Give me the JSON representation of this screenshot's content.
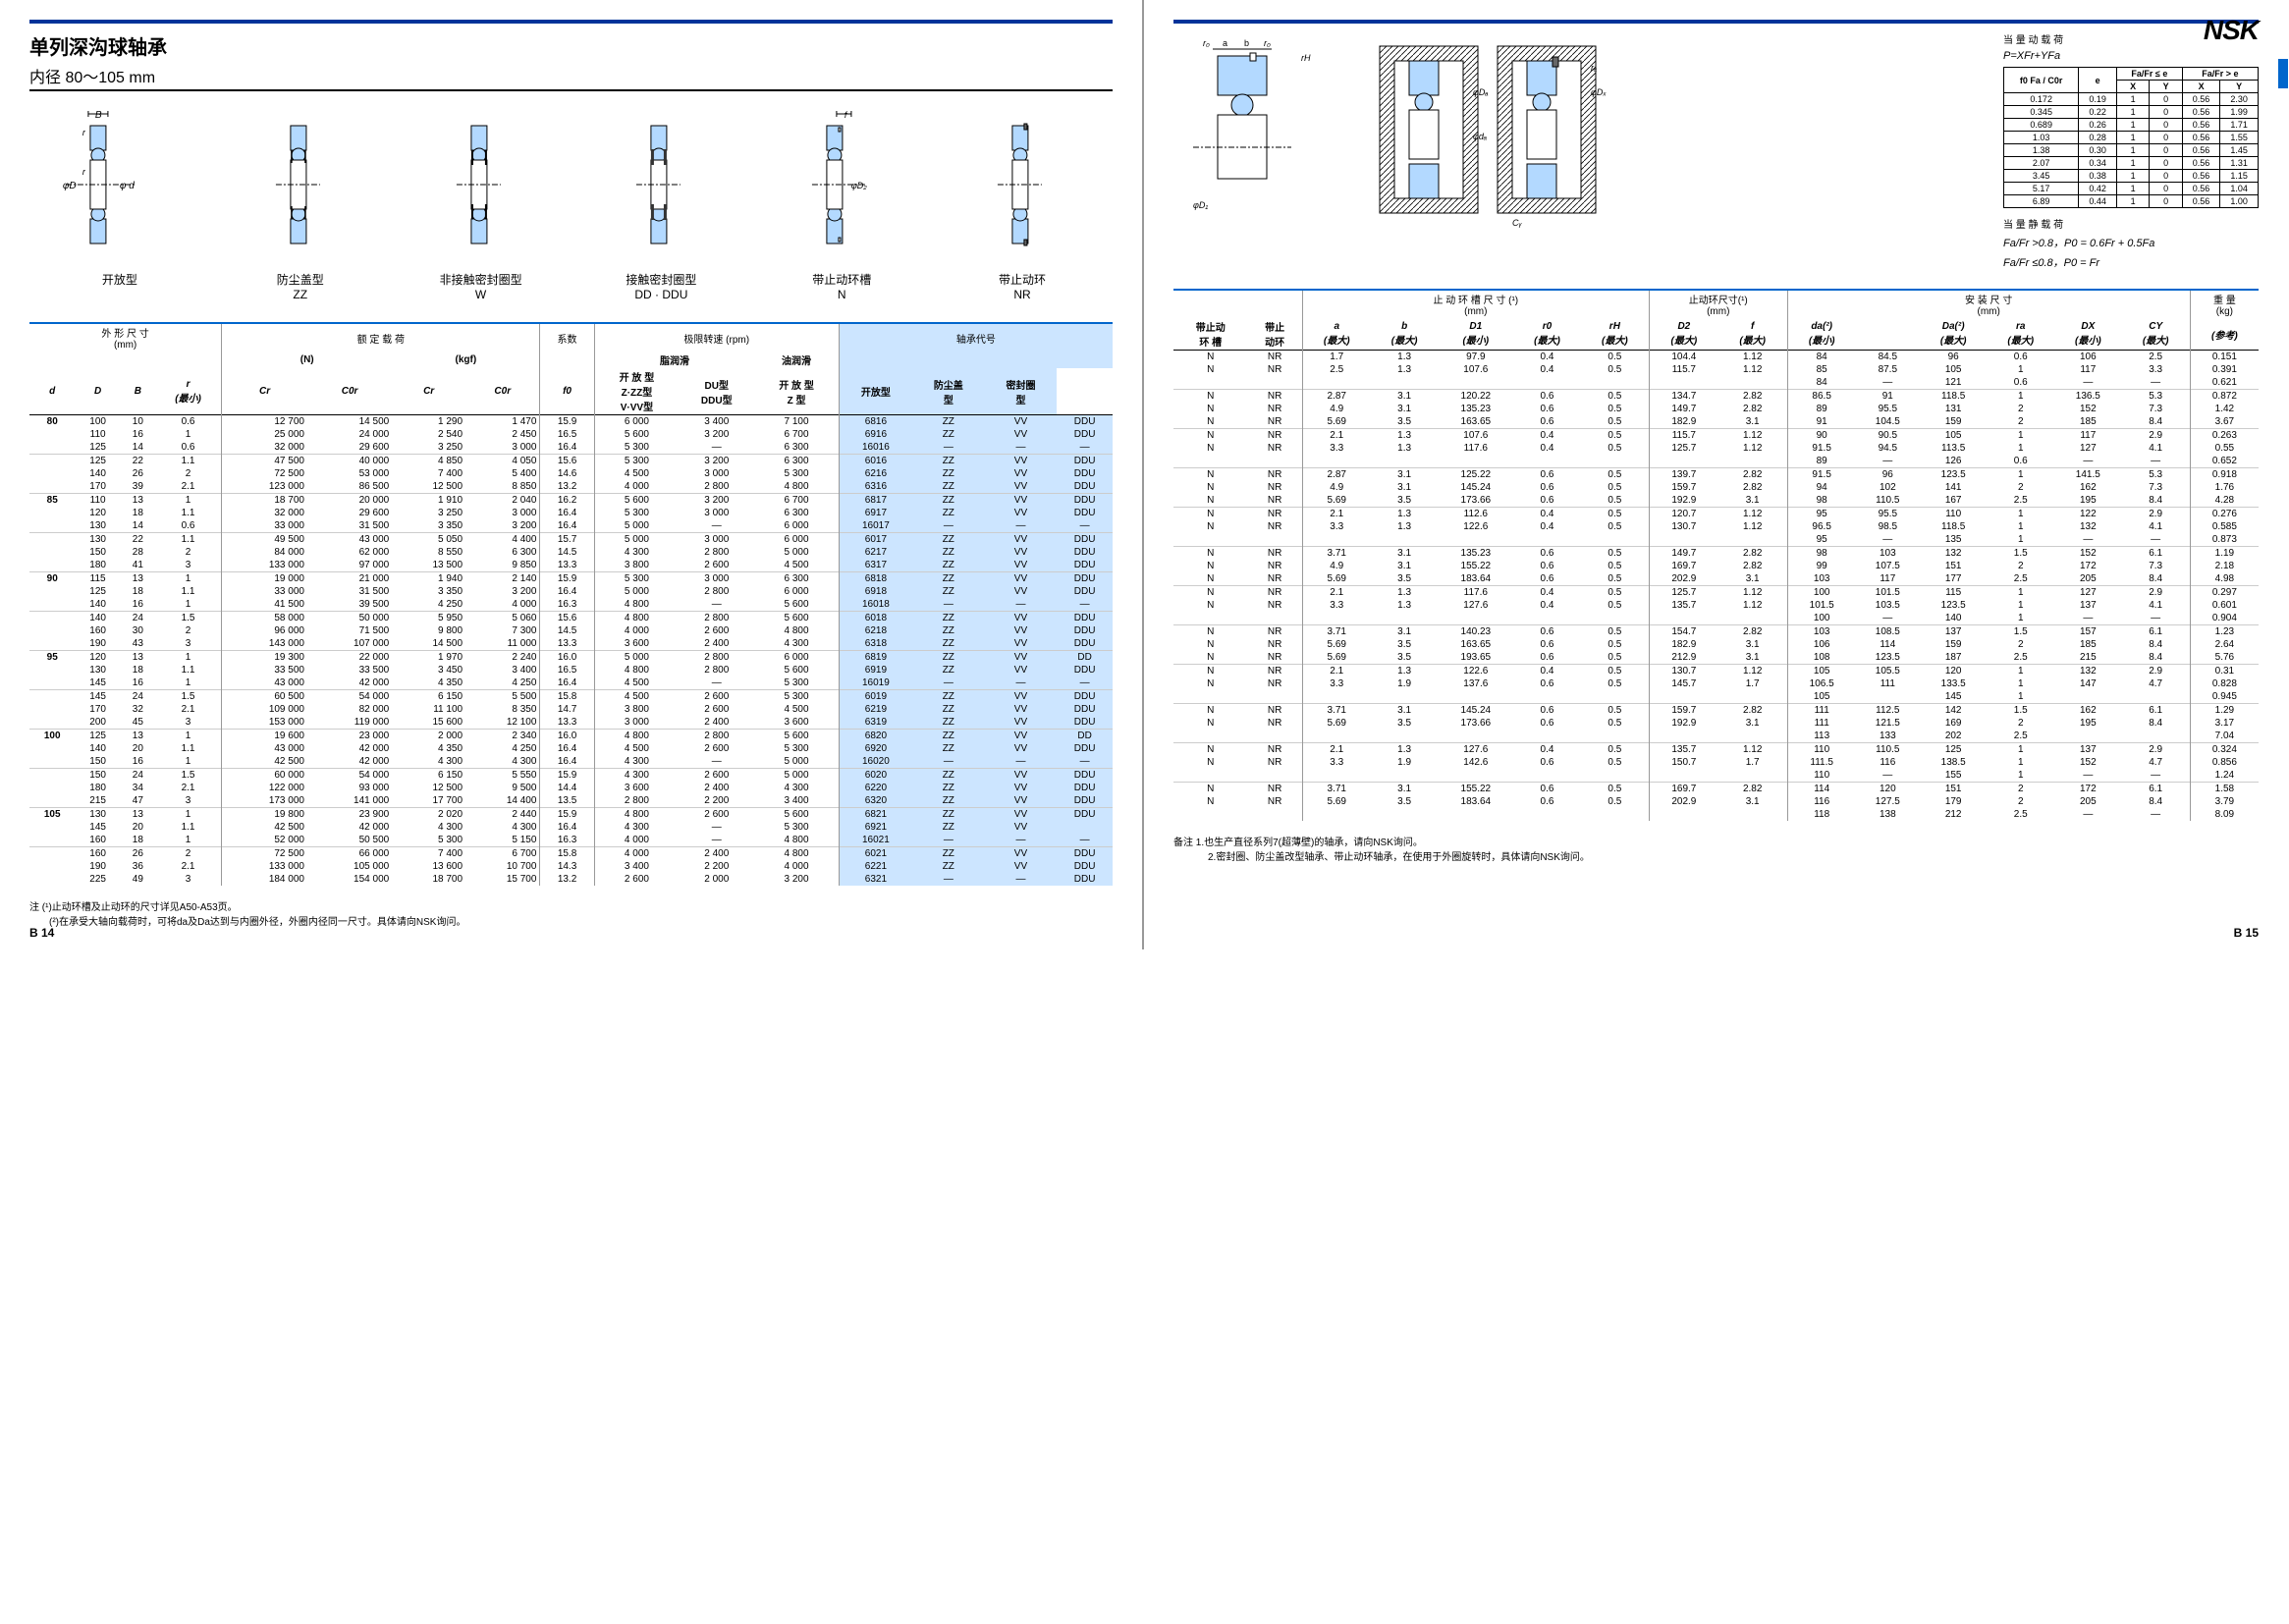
{
  "logo": "NSK",
  "titleMain": "单列深沟球轴承",
  "subtitle": "内径  80～105 mm",
  "diagramLabels": [
    "开放型",
    "防尘盖型\nZZ",
    "非接触密封圈型\nW",
    "接触密封圈型\nDD · DDU",
    "带止动环槽\nN",
    "带止动环\nNR"
  ],
  "leftHeaders": {
    "group1": "外 形 尺 寸\n(mm)",
    "group2": "额 定 载 荷",
    "group2a": "(N)",
    "group2b": "(kgf)",
    "group3": "系数",
    "group4": "极限转速    (rpm)",
    "group4a": "脂润滑",
    "group4b": "油润滑",
    "group5": "轴承代号",
    "cols": [
      "d",
      "D",
      "B",
      "r\n(最小)",
      "Cr",
      "C0r",
      "Cr",
      "C0r",
      "f0",
      "开 放 型\nZ·ZZ型\nV·VV型",
      "DU型\nDDU型",
      "开 放 型\nZ  型",
      "开放型",
      "防尘盖\n型",
      "密封圈\n型"
    ]
  },
  "leftRows": [
    [
      "80",
      "100",
      "10",
      "0.6",
      "12 700",
      "14 500",
      "1 290",
      "1 470",
      "15.9",
      "6 000",
      "3 400",
      "7 100",
      "6816",
      "ZZ",
      "VV",
      "DDU"
    ],
    [
      "",
      "110",
      "16",
      "1",
      "25 000",
      "24 000",
      "2 540",
      "2 450",
      "16.5",
      "5 600",
      "3 200",
      "6 700",
      "6916",
      "ZZ",
      "VV",
      "DDU"
    ],
    [
      "",
      "125",
      "14",
      "0.6",
      "32 000",
      "29 600",
      "3 250",
      "3 000",
      "16.4",
      "5 300",
      "—",
      "6 300",
      "16016",
      "—",
      "—",
      "—"
    ],
    [
      "",
      "125",
      "22",
      "1.1",
      "47 500",
      "40 000",
      "4 850",
      "4 050",
      "15.6",
      "5 300",
      "3 200",
      "6 300",
      "6016",
      "ZZ",
      "VV",
      "DDU"
    ],
    [
      "",
      "140",
      "26",
      "2",
      "72 500",
      "53 000",
      "7 400",
      "5 400",
      "14.6",
      "4 500",
      "3 000",
      "5 300",
      "6216",
      "ZZ",
      "VV",
      "DDU"
    ],
    [
      "",
      "170",
      "39",
      "2.1",
      "123 000",
      "86 500",
      "12 500",
      "8 850",
      "13.2",
      "4 000",
      "2 800",
      "4 800",
      "6316",
      "ZZ",
      "VV",
      "DDU"
    ],
    [
      "85",
      "110",
      "13",
      "1",
      "18 700",
      "20 000",
      "1 910",
      "2 040",
      "16.2",
      "5 600",
      "3 200",
      "6 700",
      "6817",
      "ZZ",
      "VV",
      "DDU"
    ],
    [
      "",
      "120",
      "18",
      "1.1",
      "32 000",
      "29 600",
      "3 250",
      "3 000",
      "16.4",
      "5 300",
      "3 000",
      "6 300",
      "6917",
      "ZZ",
      "VV",
      "DDU"
    ],
    [
      "",
      "130",
      "14",
      "0.6",
      "33 000",
      "31 500",
      "3 350",
      "3 200",
      "16.4",
      "5 000",
      "—",
      "6 000",
      "16017",
      "—",
      "—",
      "—"
    ],
    [
      "",
      "130",
      "22",
      "1.1",
      "49 500",
      "43 000",
      "5 050",
      "4 400",
      "15.7",
      "5 000",
      "3 000",
      "6 000",
      "6017",
      "ZZ",
      "VV",
      "DDU"
    ],
    [
      "",
      "150",
      "28",
      "2",
      "84 000",
      "62 000",
      "8 550",
      "6 300",
      "14.5",
      "4 300",
      "2 800",
      "5 000",
      "6217",
      "ZZ",
      "VV",
      "DDU"
    ],
    [
      "",
      "180",
      "41",
      "3",
      "133 000",
      "97 000",
      "13 500",
      "9 850",
      "13.3",
      "3 800",
      "2 600",
      "4 500",
      "6317",
      "ZZ",
      "VV",
      "DDU"
    ],
    [
      "90",
      "115",
      "13",
      "1",
      "19 000",
      "21 000",
      "1 940",
      "2 140",
      "15.9",
      "5 300",
      "3 000",
      "6 300",
      "6818",
      "ZZ",
      "VV",
      "DDU"
    ],
    [
      "",
      "125",
      "18",
      "1.1",
      "33 000",
      "31 500",
      "3 350",
      "3 200",
      "16.4",
      "5 000",
      "2 800",
      "6 000",
      "6918",
      "ZZ",
      "VV",
      "DDU"
    ],
    [
      "",
      "140",
      "16",
      "1",
      "41 500",
      "39 500",
      "4 250",
      "4 000",
      "16.3",
      "4 800",
      "—",
      "5 600",
      "16018",
      "—",
      "—",
      "—"
    ],
    [
      "",
      "140",
      "24",
      "1.5",
      "58 000",
      "50 000",
      "5 950",
      "5 060",
      "15.6",
      "4 800",
      "2 800",
      "5 600",
      "6018",
      "ZZ",
      "VV",
      "DDU"
    ],
    [
      "",
      "160",
      "30",
      "2",
      "96 000",
      "71 500",
      "9 800",
      "7 300",
      "14.5",
      "4 000",
      "2 600",
      "4 800",
      "6218",
      "ZZ",
      "VV",
      "DDU"
    ],
    [
      "",
      "190",
      "43",
      "3",
      "143 000",
      "107 000",
      "14 500",
      "11 000",
      "13.3",
      "3 600",
      "2 400",
      "4 300",
      "6318",
      "ZZ",
      "VV",
      "DDU"
    ],
    [
      "95",
      "120",
      "13",
      "1",
      "19 300",
      "22 000",
      "1 970",
      "2 240",
      "16.0",
      "5 000",
      "2 800",
      "6 000",
      "6819",
      "ZZ",
      "VV",
      "DD"
    ],
    [
      "",
      "130",
      "18",
      "1.1",
      "33 500",
      "33 500",
      "3 450",
      "3 400",
      "16.5",
      "4 800",
      "2 800",
      "5 600",
      "6919",
      "ZZ",
      "VV",
      "DDU"
    ],
    [
      "",
      "145",
      "16",
      "1",
      "43 000",
      "42 000",
      "4 350",
      "4 250",
      "16.4",
      "4 500",
      "—",
      "5 300",
      "16019",
      "—",
      "—",
      "—"
    ],
    [
      "",
      "145",
      "24",
      "1.5",
      "60 500",
      "54 000",
      "6 150",
      "5 500",
      "15.8",
      "4 500",
      "2 600",
      "5 300",
      "6019",
      "ZZ",
      "VV",
      "DDU"
    ],
    [
      "",
      "170",
      "32",
      "2.1",
      "109 000",
      "82 000",
      "11 100",
      "8 350",
      "14.7",
      "3 800",
      "2 600",
      "4 500",
      "6219",
      "ZZ",
      "VV",
      "DDU"
    ],
    [
      "",
      "200",
      "45",
      "3",
      "153 000",
      "119 000",
      "15 600",
      "12 100",
      "13.3",
      "3 000",
      "2 400",
      "3 600",
      "6319",
      "ZZ",
      "VV",
      "DDU"
    ],
    [
      "100",
      "125",
      "13",
      "1",
      "19 600",
      "23 000",
      "2 000",
      "2 340",
      "16.0",
      "4 800",
      "2 800",
      "5 600",
      "6820",
      "ZZ",
      "VV",
      "DD"
    ],
    [
      "",
      "140",
      "20",
      "1.1",
      "43 000",
      "42 000",
      "4 350",
      "4 250",
      "16.4",
      "4 500",
      "2 600",
      "5 300",
      "6920",
      "ZZ",
      "VV",
      "DDU"
    ],
    [
      "",
      "150",
      "16",
      "1",
      "42 500",
      "42 000",
      "4 300",
      "4 300",
      "16.4",
      "4 300",
      "—",
      "5 000",
      "16020",
      "—",
      "—",
      "—"
    ],
    [
      "",
      "150",
      "24",
      "1.5",
      "60 000",
      "54 000",
      "6 150",
      "5 550",
      "15.9",
      "4 300",
      "2 600",
      "5 000",
      "6020",
      "ZZ",
      "VV",
      "DDU"
    ],
    [
      "",
      "180",
      "34",
      "2.1",
      "122 000",
      "93 000",
      "12 500",
      "9 500",
      "14.4",
      "3 600",
      "2 400",
      "4 300",
      "6220",
      "ZZ",
      "VV",
      "DDU"
    ],
    [
      "",
      "215",
      "47",
      "3",
      "173 000",
      "141 000",
      "17 700",
      "14 400",
      "13.5",
      "2 800",
      "2 200",
      "3 400",
      "6320",
      "ZZ",
      "VV",
      "DDU"
    ],
    [
      "105",
      "130",
      "13",
      "1",
      "19 800",
      "23 900",
      "2 020",
      "2 440",
      "15.9",
      "4 800",
      "2 600",
      "5 600",
      "6821",
      "ZZ",
      "VV",
      "DDU"
    ],
    [
      "",
      "145",
      "20",
      "1.1",
      "42 500",
      "42 000",
      "4 300",
      "4 300",
      "16.4",
      "4 300",
      "—",
      "5 300",
      "6921",
      "ZZ",
      "VV",
      ""
    ],
    [
      "",
      "160",
      "18",
      "1",
      "52 000",
      "50 500",
      "5 300",
      "5 150",
      "16.3",
      "4 000",
      "—",
      "4 800",
      "16021",
      "—",
      "—",
      "—"
    ],
    [
      "",
      "160",
      "26",
      "2",
      "72 500",
      "66 000",
      "7 400",
      "6 700",
      "15.8",
      "4 000",
      "2 400",
      "4 800",
      "6021",
      "ZZ",
      "VV",
      "DDU"
    ],
    [
      "",
      "190",
      "36",
      "2.1",
      "133 000",
      "105 000",
      "13 600",
      "10 700",
      "14.3",
      "3 400",
      "2 200",
      "4 000",
      "6221",
      "ZZ",
      "VV",
      "DDU"
    ],
    [
      "",
      "225",
      "49",
      "3",
      "184 000",
      "154 000",
      "18 700",
      "15 700",
      "13.2",
      "2 600",
      "2 000",
      "3 200",
      "6321",
      "—",
      "—",
      "DDU"
    ]
  ],
  "leftFootnote1": "注 (¹)止动环槽及止动环的尺寸详见A50-A53页。",
  "leftFootnote2": "(²)在承受大轴向载荷时，可将da及Da达到与内圈外径，外圈内径同一尺寸。具体请向NSK询问。",
  "pageNumLeft": "B 14",
  "pageNumRight": "B 15",
  "rightTop": {
    "dynLoadTitle": "当 量 动 载 荷",
    "dynLoadFormula": "P=XFr+YFa",
    "staticLoadTitle": "当 量 静 载 荷",
    "staticFormula1": "Fa/Fr >0.8，P0 = 0.6Fr + 0.5Fa",
    "staticFormula2": "Fa/Fr ≤0.8，P0 = Fr",
    "tableHeaders": [
      "f0 Fa / C0r",
      "e",
      "Fa/Fr ≤ e",
      "",
      "Fa/Fr > e",
      ""
    ],
    "tableSubHeaders": [
      "",
      "",
      "X",
      "Y",
      "X",
      "Y"
    ],
    "tableRows": [
      [
        "0.172",
        "0.19",
        "1",
        "0",
        "0.56",
        "2.30"
      ],
      [
        "0.345",
        "0.22",
        "1",
        "0",
        "0.56",
        "1.99"
      ],
      [
        "0.689",
        "0.26",
        "1",
        "0",
        "0.56",
        "1.71"
      ],
      [
        "1.03",
        "0.28",
        "1",
        "0",
        "0.56",
        "1.55"
      ],
      [
        "1.38",
        "0.30",
        "1",
        "0",
        "0.56",
        "1.45"
      ],
      [
        "2.07",
        "0.34",
        "1",
        "0",
        "0.56",
        "1.31"
      ],
      [
        "3.45",
        "0.38",
        "1",
        "0",
        "0.56",
        "1.15"
      ],
      [
        "5.17",
        "0.42",
        "1",
        "0",
        "0.56",
        "1.04"
      ],
      [
        "6.89",
        "0.44",
        "1",
        "0",
        "0.56",
        "1.00"
      ]
    ]
  },
  "rightHeaders": {
    "group1": "止 动 环 槽 尺 寸 (¹)\n(mm)",
    "group2": "止动环尺寸(¹)\n(mm)",
    "group3": "安 装 尺 寸\n(mm)",
    "group4": "重  量\n(kg)",
    "pre": [
      "带止动\n环  槽",
      "带止\n动环"
    ],
    "cols": [
      "a\n(最大)",
      "b\n(最大)",
      "D1\n(最小)",
      "r0\n(最大)",
      "rH\n(最大)",
      "D2\n(最大)",
      "f\n(最大)",
      "da(²)\n(最小)",
      "",
      "Da(²)\n(最大)",
      "ra\n(最大)",
      "DX\n(最小)",
      "CY\n(最大)",
      "(参考)"
    ]
  },
  "rightRows": [
    [
      "N",
      "NR",
      "1.7",
      "1.3",
      "97.9",
      "0.4",
      "0.5",
      "104.4",
      "1.12",
      "84",
      "84.5",
      "96",
      "0.6",
      "106",
      "2.5",
      "0.151"
    ],
    [
      "N",
      "NR",
      "2.5",
      "1.3",
      "107.6",
      "0.4",
      "0.5",
      "115.7",
      "1.12",
      "85",
      "87.5",
      "105",
      "1",
      "117",
      "3.3",
      "0.391"
    ],
    [
      "",
      "",
      "",
      "",
      "",
      "",
      "",
      "",
      "",
      "84",
      "—",
      "121",
      "0.6",
      "—",
      "—",
      "0.621"
    ],
    [
      "N",
      "NR",
      "2.87",
      "3.1",
      "120.22",
      "0.6",
      "0.5",
      "134.7",
      "2.82",
      "86.5",
      "91",
      "118.5",
      "1",
      "136.5",
      "5.3",
      "0.872"
    ],
    [
      "N",
      "NR",
      "4.9",
      "3.1",
      "135.23",
      "0.6",
      "0.5",
      "149.7",
      "2.82",
      "89",
      "95.5",
      "131",
      "2",
      "152",
      "7.3",
      "1.42"
    ],
    [
      "N",
      "NR",
      "5.69",
      "3.5",
      "163.65",
      "0.6",
      "0.5",
      "182.9",
      "3.1",
      "91",
      "104.5",
      "159",
      "2",
      "185",
      "8.4",
      "3.67"
    ],
    [
      "N",
      "NR",
      "2.1",
      "1.3",
      "107.6",
      "0.4",
      "0.5",
      "115.7",
      "1.12",
      "90",
      "90.5",
      "105",
      "1",
      "117",
      "2.9",
      "0.263"
    ],
    [
      "N",
      "NR",
      "3.3",
      "1.3",
      "117.6",
      "0.4",
      "0.5",
      "125.7",
      "1.12",
      "91.5",
      "94.5",
      "113.5",
      "1",
      "127",
      "4.1",
      "0.55"
    ],
    [
      "",
      "",
      "",
      "",
      "",
      "",
      "",
      "",
      "",
      "89",
      "—",
      "126",
      "0.6",
      "—",
      "—",
      "0.652"
    ],
    [
      "N",
      "NR",
      "2.87",
      "3.1",
      "125.22",
      "0.6",
      "0.5",
      "139.7",
      "2.82",
      "91.5",
      "96",
      "123.5",
      "1",
      "141.5",
      "5.3",
      "0.918"
    ],
    [
      "N",
      "NR",
      "4.9",
      "3.1",
      "145.24",
      "0.6",
      "0.5",
      "159.7",
      "2.82",
      "94",
      "102",
      "141",
      "2",
      "162",
      "7.3",
      "1.76"
    ],
    [
      "N",
      "NR",
      "5.69",
      "3.5",
      "173.66",
      "0.6",
      "0.5",
      "192.9",
      "3.1",
      "98",
      "110.5",
      "167",
      "2.5",
      "195",
      "8.4",
      "4.28"
    ],
    [
      "N",
      "NR",
      "2.1",
      "1.3",
      "112.6",
      "0.4",
      "0.5",
      "120.7",
      "1.12",
      "95",
      "95.5",
      "110",
      "1",
      "122",
      "2.9",
      "0.276"
    ],
    [
      "N",
      "NR",
      "3.3",
      "1.3",
      "122.6",
      "0.4",
      "0.5",
      "130.7",
      "1.12",
      "96.5",
      "98.5",
      "118.5",
      "1",
      "132",
      "4.1",
      "0.585"
    ],
    [
      "",
      "",
      "",
      "",
      "",
      "",
      "",
      "",
      "",
      "95",
      "—",
      "135",
      "1",
      "—",
      "—",
      "0.873"
    ],
    [
      "N",
      "NR",
      "3.71",
      "3.1",
      "135.23",
      "0.6",
      "0.5",
      "149.7",
      "2.82",
      "98",
      "103",
      "132",
      "1.5",
      "152",
      "6.1",
      "1.19"
    ],
    [
      "N",
      "NR",
      "4.9",
      "3.1",
      "155.22",
      "0.6",
      "0.5",
      "169.7",
      "2.82",
      "99",
      "107.5",
      "151",
      "2",
      "172",
      "7.3",
      "2.18"
    ],
    [
      "N",
      "NR",
      "5.69",
      "3.5",
      "183.64",
      "0.6",
      "0.5",
      "202.9",
      "3.1",
      "103",
      "117",
      "177",
      "2.5",
      "205",
      "8.4",
      "4.98"
    ],
    [
      "N",
      "NR",
      "2.1",
      "1.3",
      "117.6",
      "0.4",
      "0.5",
      "125.7",
      "1.12",
      "100",
      "101.5",
      "115",
      "1",
      "127",
      "2.9",
      "0.297"
    ],
    [
      "N",
      "NR",
      "3.3",
      "1.3",
      "127.6",
      "0.4",
      "0.5",
      "135.7",
      "1.12",
      "101.5",
      "103.5",
      "123.5",
      "1",
      "137",
      "4.1",
      "0.601"
    ],
    [
      "",
      "",
      "",
      "",
      "",
      "",
      "",
      "",
      "",
      "100",
      "—",
      "140",
      "1",
      "—",
      "—",
      "0.904"
    ],
    [
      "N",
      "NR",
      "3.71",
      "3.1",
      "140.23",
      "0.6",
      "0.5",
      "154.7",
      "2.82",
      "103",
      "108.5",
      "137",
      "1.5",
      "157",
      "6.1",
      "1.23"
    ],
    [
      "N",
      "NR",
      "5.69",
      "3.5",
      "163.65",
      "0.6",
      "0.5",
      "182.9",
      "3.1",
      "106",
      "114",
      "159",
      "2",
      "185",
      "8.4",
      "2.64"
    ],
    [
      "N",
      "NR",
      "5.69",
      "3.5",
      "193.65",
      "0.6",
      "0.5",
      "212.9",
      "3.1",
      "108",
      "123.5",
      "187",
      "2.5",
      "215",
      "8.4",
      "5.76"
    ],
    [
      "N",
      "NR",
      "2.1",
      "1.3",
      "122.6",
      "0.4",
      "0.5",
      "130.7",
      "1.12",
      "105",
      "105.5",
      "120",
      "1",
      "132",
      "2.9",
      "0.31"
    ],
    [
      "N",
      "NR",
      "3.3",
      "1.9",
      "137.6",
      "0.6",
      "0.5",
      "145.7",
      "1.7",
      "106.5",
      "111",
      "133.5",
      "1",
      "147",
      "4.7",
      "0.828"
    ],
    [
      "",
      "",
      "",
      "",
      "",
      "",
      "",
      "",
      "",
      "105",
      "",
      "145",
      "1",
      "",
      "",
      "0.945"
    ],
    [
      "N",
      "NR",
      "3.71",
      "3.1",
      "145.24",
      "0.6",
      "0.5",
      "159.7",
      "2.82",
      "111",
      "112.5",
      "142",
      "1.5",
      "162",
      "6.1",
      "1.29"
    ],
    [
      "N",
      "NR",
      "5.69",
      "3.5",
      "173.66",
      "0.6",
      "0.5",
      "192.9",
      "3.1",
      "111",
      "121.5",
      "169",
      "2",
      "195",
      "8.4",
      "3.17"
    ],
    [
      "",
      "",
      "",
      "",
      "",
      "",
      "",
      "",
      "",
      "113",
      "133",
      "202",
      "2.5",
      "",
      "",
      "7.04"
    ],
    [
      "N",
      "NR",
      "2.1",
      "1.3",
      "127.6",
      "0.4",
      "0.5",
      "135.7",
      "1.12",
      "110",
      "110.5",
      "125",
      "1",
      "137",
      "2.9",
      "0.324"
    ],
    [
      "N",
      "NR",
      "3.3",
      "1.9",
      "142.6",
      "0.6",
      "0.5",
      "150.7",
      "1.7",
      "111.5",
      "116",
      "138.5",
      "1",
      "152",
      "4.7",
      "0.856"
    ],
    [
      "",
      "",
      "",
      "",
      "",
      "",
      "",
      "",
      "",
      "110",
      "—",
      "155",
      "1",
      "—",
      "—",
      "1.24"
    ],
    [
      "N",
      "NR",
      "3.71",
      "3.1",
      "155.22",
      "0.6",
      "0.5",
      "169.7",
      "2.82",
      "114",
      "120",
      "151",
      "2",
      "172",
      "6.1",
      "1.58"
    ],
    [
      "N",
      "NR",
      "5.69",
      "3.5",
      "183.64",
      "0.6",
      "0.5",
      "202.9",
      "3.1",
      "116",
      "127.5",
      "179",
      "2",
      "205",
      "8.4",
      "3.79"
    ],
    [
      "",
      "",
      "",
      "",
      "",
      "",
      "",
      "",
      "",
      "118",
      "138",
      "212",
      "2.5",
      "—",
      "—",
      "8.09"
    ]
  ],
  "rightFootnote1": "备注  1.也生产直径系列7(超薄壁)的轴承，请向NSK询问。",
  "rightFootnote2": "2.密封圈、防尘盖改型轴承、带止动环轴承，在使用于外圈旋转时，具体请向NSK询问。",
  "colors": {
    "headerBlue": "#003399",
    "lineBlue": "#0066cc",
    "lightBlue": "#cce5ff",
    "bearingFill": "#b3d9ff"
  }
}
